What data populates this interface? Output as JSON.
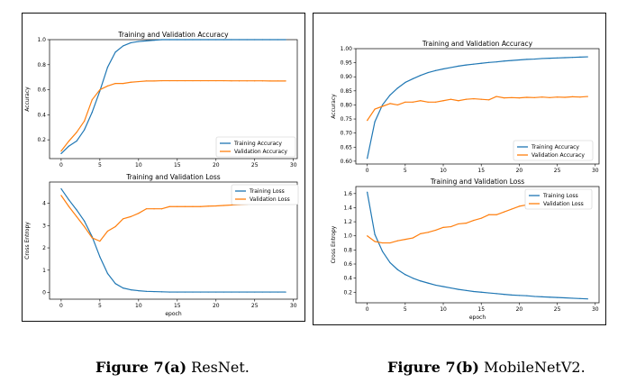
{
  "colors": {
    "training": "#1f77b4",
    "validation": "#ff7f0e",
    "axis": "#000000",
    "frame": "#111111"
  },
  "captions": {
    "a": {
      "bold": "Figure 7(a)",
      "text": " ResNet."
    },
    "b": {
      "bold": "Figure 7(b)",
      "text": " MobileNetV2."
    }
  },
  "chart_data": [
    {
      "id": "resnet-accuracy",
      "type": "line",
      "title": "Training and Validation Accuracy",
      "xlabel": "",
      "ylabel": "Accuracy",
      "xlim": [
        -1.5,
        30.5
      ],
      "ylim": [
        0.05,
        1.0
      ],
      "xticks": [
        0,
        5,
        10,
        15,
        20,
        25,
        30
      ],
      "yticks": [
        0.2,
        0.4,
        0.6,
        0.8,
        1.0
      ],
      "ytick_labels": [
        "0.2",
        "0.4",
        "0.6",
        "0.8",
        "1.0"
      ],
      "legend": "lower-right",
      "x": [
        0,
        1,
        2,
        3,
        4,
        5,
        6,
        7,
        8,
        9,
        10,
        11,
        12,
        13,
        14,
        15,
        16,
        17,
        18,
        19,
        20,
        21,
        22,
        23,
        24,
        25,
        26,
        27,
        28,
        29
      ],
      "series": [
        {
          "name": "Training Accuracy",
          "color_key": "training",
          "values": [
            0.09,
            0.15,
            0.19,
            0.28,
            0.42,
            0.59,
            0.78,
            0.9,
            0.95,
            0.975,
            0.985,
            0.99,
            0.995,
            1.0,
            1.0,
            1.0,
            1.0,
            1.0,
            1.0,
            1.0,
            1.0,
            1.0,
            1.0,
            1.0,
            1.0,
            1.0,
            1.0,
            1.0,
            1.0,
            1.0
          ]
        },
        {
          "name": "Validation Accuracy",
          "color_key": "validation",
          "values": [
            0.11,
            0.19,
            0.26,
            0.35,
            0.52,
            0.6,
            0.63,
            0.65,
            0.65,
            0.66,
            0.665,
            0.67,
            0.67,
            0.672,
            0.672,
            0.672,
            0.672,
            0.672,
            0.672,
            0.672,
            0.672,
            0.672,
            0.671,
            0.671,
            0.671,
            0.671,
            0.671,
            0.67,
            0.67,
            0.67
          ]
        }
      ]
    },
    {
      "id": "resnet-loss",
      "type": "line",
      "title": "Training and Validation Loss",
      "xlabel": "epoch",
      "ylabel": "Cross Entropy",
      "xlim": [
        -1.5,
        30.5
      ],
      "ylim": [
        -0.3,
        4.95
      ],
      "xticks": [
        0,
        5,
        10,
        15,
        20,
        25,
        30
      ],
      "yticks": [
        0,
        1,
        2,
        3,
        4
      ],
      "ytick_labels": [
        "0",
        "1",
        "2",
        "3",
        "4"
      ],
      "legend": "top-right",
      "x": [
        0,
        1,
        2,
        3,
        4,
        5,
        6,
        7,
        8,
        9,
        10,
        11,
        12,
        13,
        14,
        15,
        16,
        17,
        18,
        19,
        20,
        21,
        22,
        23,
        24,
        25,
        26,
        27,
        28,
        29
      ],
      "series": [
        {
          "name": "Training Loss",
          "color_key": "training",
          "values": [
            4.65,
            4.15,
            3.7,
            3.2,
            2.5,
            1.6,
            0.85,
            0.4,
            0.2,
            0.12,
            0.08,
            0.05,
            0.04,
            0.03,
            0.02,
            0.02,
            0.02,
            0.02,
            0.02,
            0.02,
            0.02,
            0.02,
            0.02,
            0.02,
            0.02,
            0.02,
            0.02,
            0.02,
            0.02,
            0.02
          ]
        },
        {
          "name": "Validation Loss",
          "color_key": "validation",
          "values": [
            4.35,
            3.85,
            3.4,
            2.95,
            2.45,
            2.3,
            2.75,
            2.95,
            3.3,
            3.4,
            3.55,
            3.75,
            3.75,
            3.75,
            3.85,
            3.85,
            3.85,
            3.85,
            3.85,
            3.87,
            3.88,
            3.9,
            3.92,
            3.94,
            3.96,
            3.98,
            3.99,
            4.0,
            4.02,
            4.05
          ]
        }
      ]
    },
    {
      "id": "mobilenet-accuracy",
      "type": "line",
      "title": "Training and Validation Accuracy",
      "xlabel": "",
      "ylabel": "Accuracy",
      "xlim": [
        -1.5,
        30.5
      ],
      "ylim": [
        0.59,
        1.0
      ],
      "xticks": [
        0,
        5,
        10,
        15,
        20,
        25,
        30
      ],
      "yticks": [
        0.6,
        0.65,
        0.7,
        0.75,
        0.8,
        0.85,
        0.9,
        0.95,
        1.0
      ],
      "ytick_labels": [
        "0.60",
        "0.65",
        "0.70",
        "0.75",
        "0.80",
        "0.85",
        "0.90",
        "0.95",
        "1.00"
      ],
      "legend": "lower-right",
      "x": [
        0,
        1,
        2,
        3,
        4,
        5,
        6,
        7,
        8,
        9,
        10,
        11,
        12,
        13,
        14,
        15,
        16,
        17,
        18,
        19,
        20,
        21,
        22,
        23,
        24,
        25,
        26,
        27,
        28,
        29
      ],
      "series": [
        {
          "name": "Training Accuracy",
          "color_key": "training",
          "values": [
            0.61,
            0.74,
            0.8,
            0.835,
            0.86,
            0.88,
            0.893,
            0.905,
            0.915,
            0.922,
            0.928,
            0.933,
            0.938,
            0.942,
            0.945,
            0.948,
            0.951,
            0.953,
            0.956,
            0.958,
            0.96,
            0.962,
            0.963,
            0.965,
            0.966,
            0.967,
            0.968,
            0.969,
            0.97,
            0.971
          ]
        },
        {
          "name": "Validation Accuracy",
          "color_key": "validation",
          "values": [
            0.745,
            0.785,
            0.795,
            0.805,
            0.8,
            0.81,
            0.81,
            0.815,
            0.81,
            0.81,
            0.815,
            0.82,
            0.815,
            0.82,
            0.822,
            0.82,
            0.818,
            0.83,
            0.825,
            0.826,
            0.825,
            0.827,
            0.826,
            0.828,
            0.826,
            0.828,
            0.827,
            0.829,
            0.828,
            0.83
          ]
        }
      ]
    },
    {
      "id": "mobilenet-loss",
      "type": "line",
      "title": "Training and Validation Loss",
      "xlabel": "epoch",
      "ylabel": "Cross Entropy",
      "xlim": [
        -1.5,
        30.5
      ],
      "ylim": [
        0.05,
        1.7
      ],
      "xticks": [
        0,
        5,
        10,
        15,
        20,
        25,
        30
      ],
      "yticks": [
        0.2,
        0.4,
        0.6,
        0.8,
        1.0,
        1.2,
        1.4,
        1.6
      ],
      "ytick_labels": [
        "0.2",
        "0.4",
        "0.6",
        "0.8",
        "1.0",
        "1.2",
        "1.4",
        "1.6"
      ],
      "legend": "top-right",
      "x": [
        0,
        1,
        2,
        3,
        4,
        5,
        6,
        7,
        8,
        9,
        10,
        11,
        12,
        13,
        14,
        15,
        16,
        17,
        18,
        19,
        20,
        21,
        22,
        23,
        24,
        25,
        26,
        27,
        28,
        29
      ],
      "series": [
        {
          "name": "Training Loss",
          "color_key": "training",
          "values": [
            1.62,
            1.02,
            0.78,
            0.62,
            0.52,
            0.45,
            0.4,
            0.36,
            0.33,
            0.3,
            0.28,
            0.26,
            0.24,
            0.225,
            0.21,
            0.2,
            0.19,
            0.18,
            0.17,
            0.16,
            0.155,
            0.15,
            0.14,
            0.135,
            0.13,
            0.125,
            0.12,
            0.115,
            0.11,
            0.105
          ]
        },
        {
          "name": "Validation Loss",
          "color_key": "validation",
          "values": [
            1.0,
            0.92,
            0.9,
            0.9,
            0.93,
            0.95,
            0.97,
            1.03,
            1.05,
            1.08,
            1.12,
            1.13,
            1.17,
            1.18,
            1.22,
            1.25,
            1.3,
            1.3,
            1.34,
            1.38,
            1.42,
            1.44,
            1.48,
            1.5,
            1.52,
            1.55,
            1.57,
            1.6,
            1.62,
            1.65
          ]
        }
      ]
    }
  ]
}
